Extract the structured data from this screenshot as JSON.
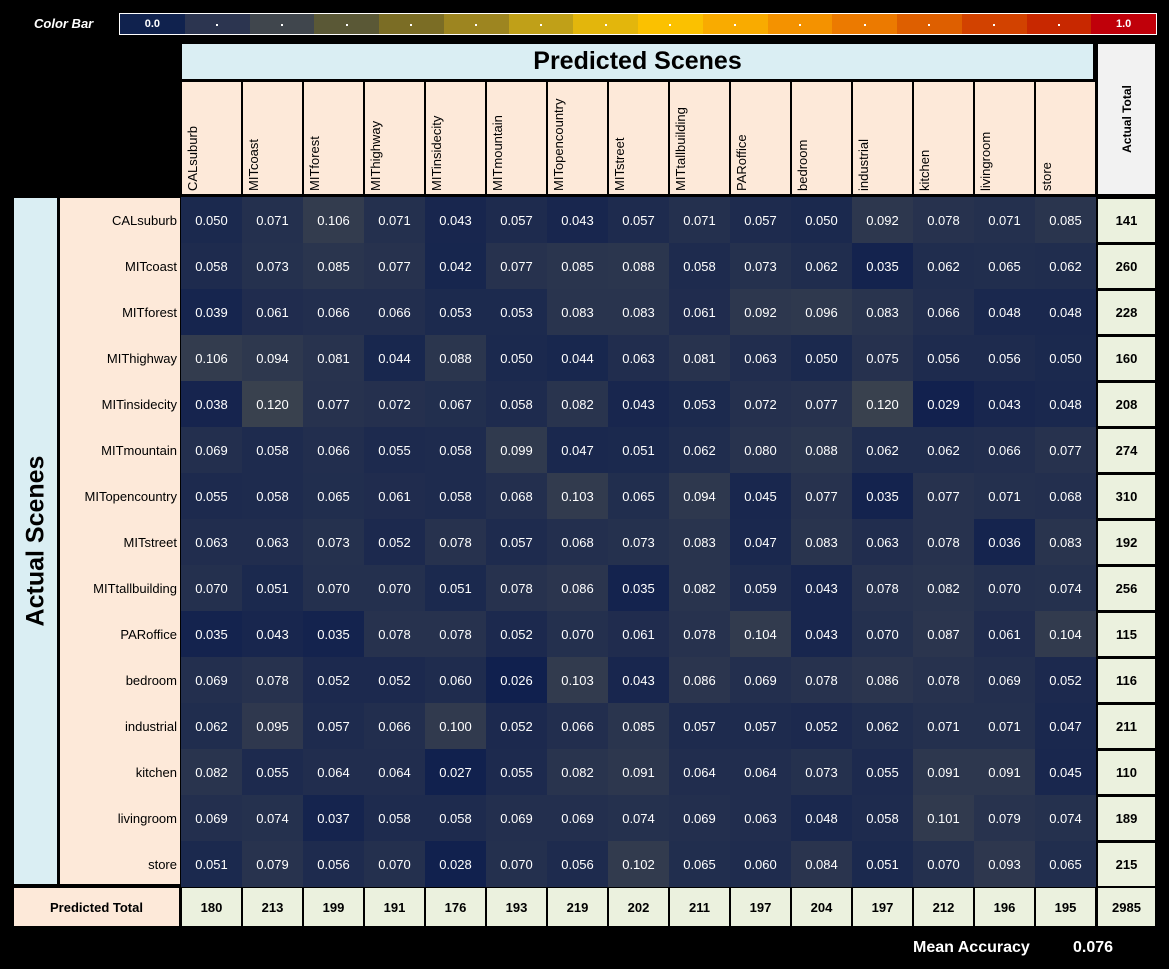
{
  "chart_data": {
    "type": "heatmap",
    "colorbar": {
      "label": "Color Bar",
      "min_label": "0.0",
      "max_label": "1.0",
      "colors": [
        "#10224e",
        "#2c3550",
        "#40464d",
        "#5a5836",
        "#7b6d25",
        "#9d8520",
        "#c0a018",
        "#e3b60c",
        "#fbc100",
        "#f9ab00",
        "#f49200",
        "#ec7a00",
        "#de5f00",
        "#d24200",
        "#c82800",
        "#c0000a"
      ]
    },
    "title": "Predicted Scenes",
    "ylabel": "Actual Scenes",
    "actual_total_label": "Actual Total",
    "predicted_total_label": "Predicted Total",
    "columns": [
      "CALsuburb",
      "MITcoast",
      "MITforest",
      "MIThighway",
      "MITinsidecity",
      "MITmountain",
      "MITopencountry",
      "MITstreet",
      "MITtallbuilding",
      "PARoffice",
      "bedroom",
      "industrial",
      "kitchen",
      "livingroom",
      "store"
    ],
    "rows": [
      "CALsuburb",
      "MITcoast",
      "MITforest",
      "MIThighway",
      "MITinsidecity",
      "MITmountain",
      "MITopencountry",
      "MITstreet",
      "MITtallbuilding",
      "PARoffice",
      "bedroom",
      "industrial",
      "kitchen",
      "livingroom",
      "store"
    ],
    "values": [
      [
        "0.050",
        "0.071",
        "0.106",
        "0.071",
        "0.043",
        "0.057",
        "0.043",
        "0.057",
        "0.071",
        "0.057",
        "0.050",
        "0.092",
        "0.078",
        "0.071",
        "0.085"
      ],
      [
        "0.058",
        "0.073",
        "0.085",
        "0.077",
        "0.042",
        "0.077",
        "0.085",
        "0.088",
        "0.058",
        "0.073",
        "0.062",
        "0.035",
        "0.062",
        "0.065",
        "0.062"
      ],
      [
        "0.039",
        "0.061",
        "0.066",
        "0.066",
        "0.053",
        "0.053",
        "0.083",
        "0.083",
        "0.061",
        "0.092",
        "0.096",
        "0.083",
        "0.066",
        "0.048",
        "0.048"
      ],
      [
        "0.106",
        "0.094",
        "0.081",
        "0.044",
        "0.088",
        "0.050",
        "0.044",
        "0.063",
        "0.081",
        "0.063",
        "0.050",
        "0.075",
        "0.056",
        "0.056",
        "0.050"
      ],
      [
        "0.038",
        "0.120",
        "0.077",
        "0.072",
        "0.067",
        "0.058",
        "0.082",
        "0.043",
        "0.053",
        "0.072",
        "0.077",
        "0.120",
        "0.029",
        "0.043",
        "0.048"
      ],
      [
        "0.069",
        "0.058",
        "0.066",
        "0.055",
        "0.058",
        "0.099",
        "0.047",
        "0.051",
        "0.062",
        "0.080",
        "0.088",
        "0.062",
        "0.062",
        "0.066",
        "0.077"
      ],
      [
        "0.055",
        "0.058",
        "0.065",
        "0.061",
        "0.058",
        "0.068",
        "0.103",
        "0.065",
        "0.094",
        "0.045",
        "0.077",
        "0.035",
        "0.077",
        "0.071",
        "0.068"
      ],
      [
        "0.063",
        "0.063",
        "0.073",
        "0.052",
        "0.078",
        "0.057",
        "0.068",
        "0.073",
        "0.083",
        "0.047",
        "0.083",
        "0.063",
        "0.078",
        "0.036",
        "0.083"
      ],
      [
        "0.070",
        "0.051",
        "0.070",
        "0.070",
        "0.051",
        "0.078",
        "0.086",
        "0.035",
        "0.082",
        "0.059",
        "0.043",
        "0.078",
        "0.082",
        "0.070",
        "0.074"
      ],
      [
        "0.035",
        "0.043",
        "0.035",
        "0.078",
        "0.078",
        "0.052",
        "0.070",
        "0.061",
        "0.078",
        "0.104",
        "0.043",
        "0.070",
        "0.087",
        "0.061",
        "0.104"
      ],
      [
        "0.069",
        "0.078",
        "0.052",
        "0.052",
        "0.060",
        "0.026",
        "0.103",
        "0.043",
        "0.086",
        "0.069",
        "0.078",
        "0.086",
        "0.078",
        "0.069",
        "0.052"
      ],
      [
        "0.062",
        "0.095",
        "0.057",
        "0.066",
        "0.100",
        "0.052",
        "0.066",
        "0.085",
        "0.057",
        "0.057",
        "0.052",
        "0.062",
        "0.071",
        "0.071",
        "0.047"
      ],
      [
        "0.082",
        "0.055",
        "0.064",
        "0.064",
        "0.027",
        "0.055",
        "0.082",
        "0.091",
        "0.064",
        "0.064",
        "0.073",
        "0.055",
        "0.091",
        "0.091",
        "0.045"
      ],
      [
        "0.069",
        "0.074",
        "0.037",
        "0.058",
        "0.058",
        "0.069",
        "0.069",
        "0.074",
        "0.069",
        "0.063",
        "0.048",
        "0.058",
        "0.101",
        "0.079",
        "0.074"
      ],
      [
        "0.051",
        "0.079",
        "0.056",
        "0.070",
        "0.028",
        "0.070",
        "0.056",
        "0.102",
        "0.065",
        "0.060",
        "0.084",
        "0.051",
        "0.070",
        "0.093",
        "0.065"
      ]
    ],
    "actual_totals": [
      "141",
      "260",
      "228",
      "160",
      "208",
      "274",
      "310",
      "192",
      "256",
      "115",
      "116",
      "211",
      "110",
      "189",
      "215"
    ],
    "predicted_totals": [
      "180",
      "213",
      "199",
      "191",
      "176",
      "193",
      "219",
      "202",
      "211",
      "197",
      "204",
      "197",
      "212",
      "196",
      "195"
    ],
    "grand_total": "2985",
    "mean_accuracy_label": "Mean Accuracy",
    "mean_accuracy": "0.076"
  }
}
